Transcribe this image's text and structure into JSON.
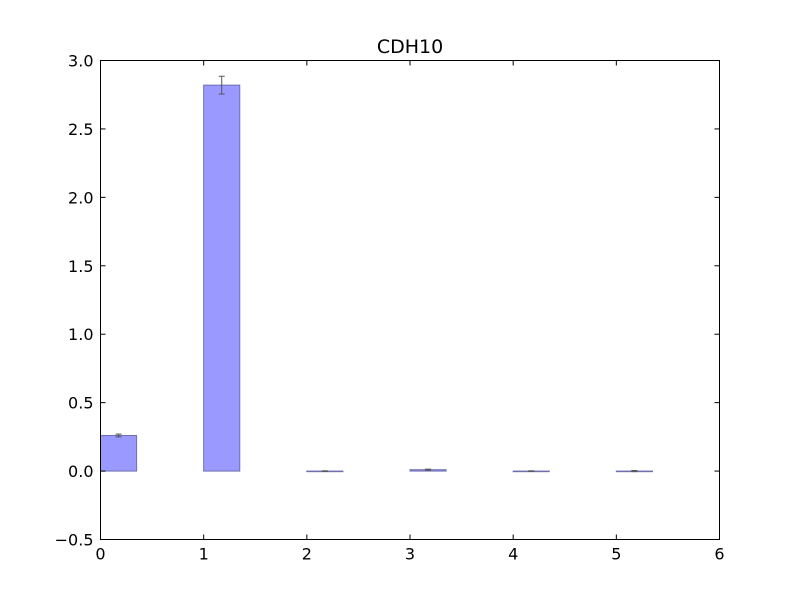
{
  "chart_data": {
    "type": "bar",
    "title": "CDH10",
    "xlabel": "",
    "ylabel": "",
    "xlim": [
      0,
      6
    ],
    "ylim": [
      -0.5,
      3.0
    ],
    "x_ticks": [
      0,
      1,
      2,
      3,
      4,
      5,
      6
    ],
    "x_tick_labels": [
      "0",
      "1",
      "2",
      "3",
      "4",
      "5",
      "6"
    ],
    "y_ticks": [
      -0.5,
      0.0,
      0.5,
      1.0,
      1.5,
      2.0,
      2.5,
      3.0
    ],
    "y_tick_labels": [
      "−0.5",
      "0.0",
      "0.5",
      "1.0",
      "1.5",
      "2.0",
      "2.5",
      "3.0"
    ],
    "bar_width": 0.35,
    "grid": false,
    "bar_color": "#9999ff",
    "bar_edge_color": "#6f6fb0",
    "error_color": "#555555",
    "bars": [
      {
        "x": 0,
        "value": 0.26,
        "error": 0.01
      },
      {
        "x": 1,
        "value": 2.82,
        "error": 0.065
      },
      {
        "x": 2,
        "value": 0.0,
        "error": 0.002
      },
      {
        "x": 3,
        "value": 0.01,
        "error": 0.004
      },
      {
        "x": 4,
        "value": 0.0,
        "error": 0.002
      },
      {
        "x": 5,
        "value": 0.0,
        "error": 0.004
      }
    ]
  }
}
